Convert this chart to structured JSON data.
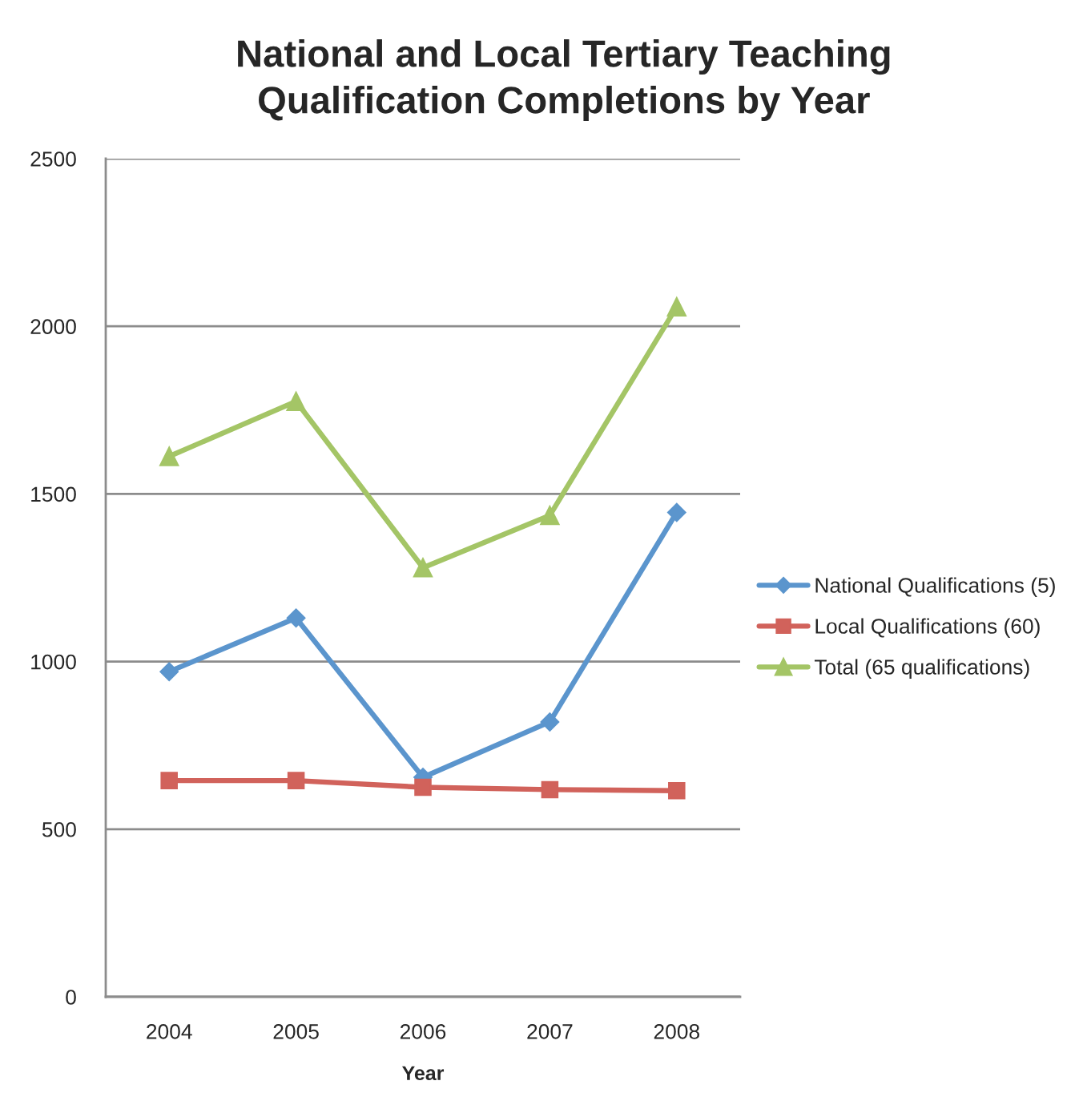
{
  "chart_data": {
    "type": "line",
    "title": "National and Local Tertiary Teaching Qualification Completions by Year",
    "xlabel": "Year",
    "categories": [
      "2004",
      "2005",
      "2006",
      "2007",
      "2008"
    ],
    "series": [
      {
        "name": "National Qualifications (5)",
        "color": "#5b95cd",
        "marker": "diamond",
        "values": [
          970,
          1130,
          655,
          820,
          1445
        ]
      },
      {
        "name": "Local Qualifications (60)",
        "color": "#d1625b",
        "marker": "square",
        "values": [
          645,
          645,
          625,
          618,
          615
        ]
      },
      {
        "name": "Total (65 qualifications)",
        "color": "#a4c566",
        "marker": "triangle",
        "values": [
          1612,
          1776,
          1280,
          1436,
          2058
        ]
      }
    ],
    "ylim": [
      0,
      2500
    ],
    "yticks": [
      0,
      500,
      1000,
      1500,
      2000,
      2500
    ],
    "grid": "y",
    "legend": "right",
    "line_style": "solid"
  }
}
